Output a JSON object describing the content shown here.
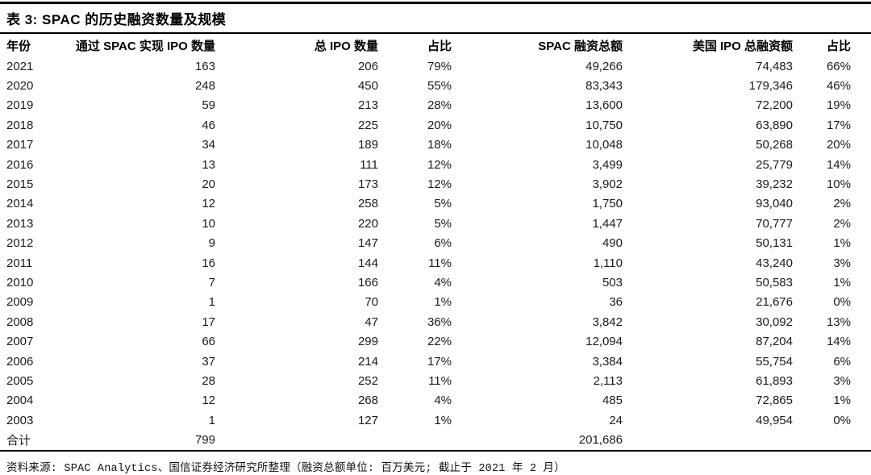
{
  "title": "表 3: SPAC 的历史融资数量及规模",
  "table": {
    "columns": [
      "年份",
      "通过 SPAC 实现 IPO 数量",
      "总 IPO 数量",
      "占比",
      "SPAC 融资总额",
      "美国 IPO 总融资额",
      "占比"
    ],
    "rows": [
      [
        "2021",
        "163",
        "206",
        "79%",
        "49,266",
        "74,483",
        "66%"
      ],
      [
        "2020",
        "248",
        "450",
        "55%",
        "83,343",
        "179,346",
        "46%"
      ],
      [
        "2019",
        "59",
        "213",
        "28%",
        "13,600",
        "72,200",
        "19%"
      ],
      [
        "2018",
        "46",
        "225",
        "20%",
        "10,750",
        "63,890",
        "17%"
      ],
      [
        "2017",
        "34",
        "189",
        "18%",
        "10,048",
        "50,268",
        "20%"
      ],
      [
        "2016",
        "13",
        "111",
        "12%",
        "3,499",
        "25,779",
        "14%"
      ],
      [
        "2015",
        "20",
        "173",
        "12%",
        "3,902",
        "39,232",
        "10%"
      ],
      [
        "2014",
        "12",
        "258",
        "5%",
        "1,750",
        "93,040",
        "2%"
      ],
      [
        "2013",
        "10",
        "220",
        "5%",
        "1,447",
        "70,777",
        "2%"
      ],
      [
        "2012",
        "9",
        "147",
        "6%",
        "490",
        "50,131",
        "1%"
      ],
      [
        "2011",
        "16",
        "144",
        "11%",
        "1,110",
        "43,240",
        "3%"
      ],
      [
        "2010",
        "7",
        "166",
        "4%",
        "503",
        "50,583",
        "1%"
      ],
      [
        "2009",
        "1",
        "70",
        "1%",
        "36",
        "21,676",
        "0%"
      ],
      [
        "2008",
        "17",
        "47",
        "36%",
        "3,842",
        "30,092",
        "13%"
      ],
      [
        "2007",
        "66",
        "299",
        "22%",
        "12,094",
        "87,204",
        "14%"
      ],
      [
        "2006",
        "37",
        "214",
        "17%",
        "3,384",
        "55,754",
        "6%"
      ],
      [
        "2005",
        "28",
        "252",
        "11%",
        "2,113",
        "61,893",
        "3%"
      ],
      [
        "2004",
        "12",
        "268",
        "4%",
        "485",
        "72,865",
        "1%"
      ],
      [
        "2003",
        "1",
        "127",
        "1%",
        "24",
        "49,954",
        "0%"
      ],
      [
        "合计",
        "799",
        "",
        "",
        "201,686",
        "",
        ""
      ]
    ],
    "total_row_label": "合计"
  },
  "source_note": "资料来源: SPAC Analytics、国信证券经济研究所整理（融资总额单位: 百万美元; 截止于 2021 年 2 月）",
  "colors": {
    "background": "#ffffff",
    "text": "#000000",
    "rule": "#000000"
  }
}
